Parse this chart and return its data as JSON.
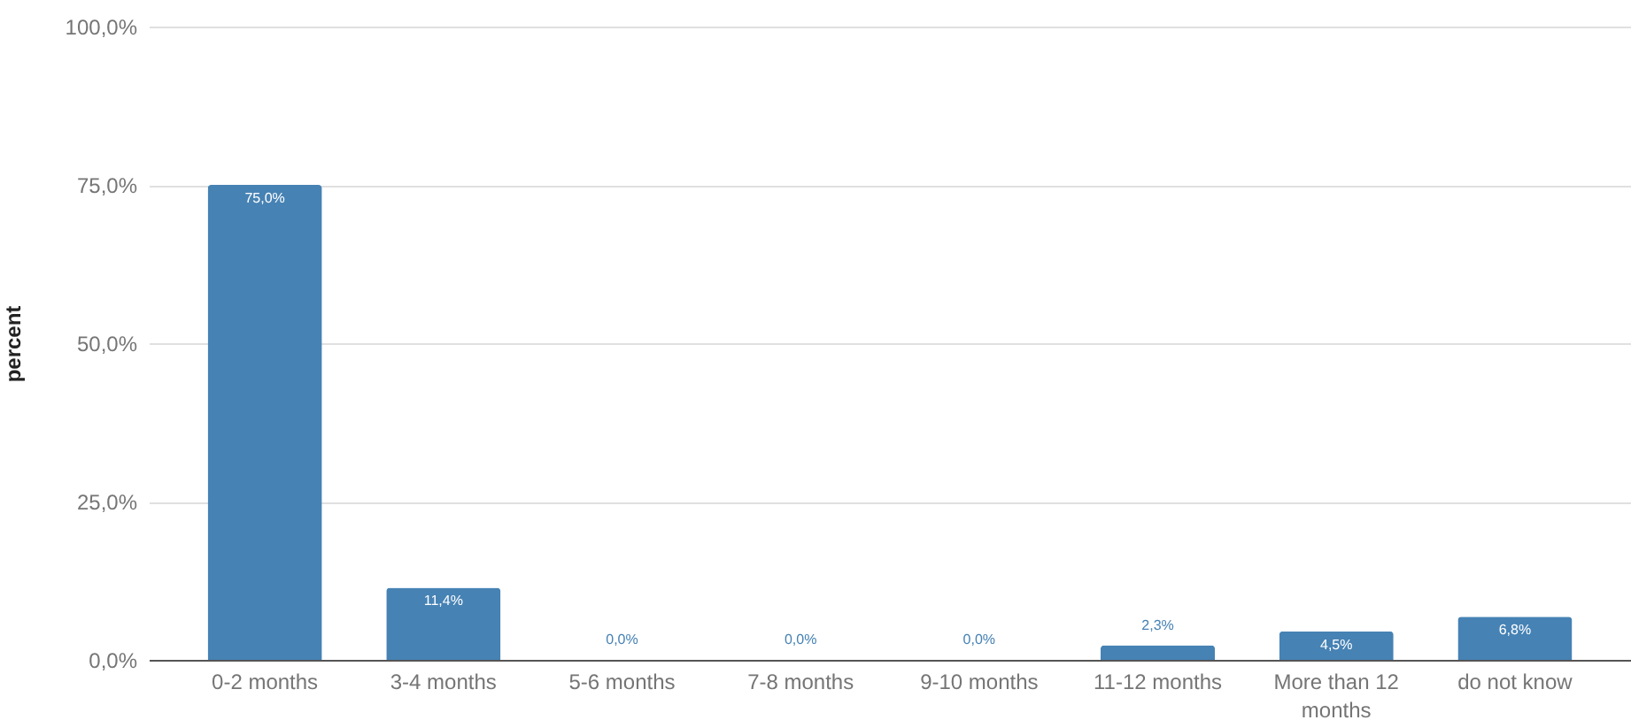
{
  "chart_data": {
    "type": "bar",
    "ylabel": "percent",
    "categories": [
      "0-2 months",
      "3-4 months",
      "5-6 months",
      "7-8 months",
      "9-10 months",
      "11-12 months",
      "More than 12 months",
      "do not know"
    ],
    "values": [
      75.0,
      11.4,
      0.0,
      0.0,
      0.0,
      2.3,
      4.5,
      6.8
    ],
    "value_labels": [
      "75,0%",
      "11,4%",
      "0,0%",
      "0,0%",
      "0,0%",
      "2,3%",
      "4,5%",
      "6,8%"
    ],
    "color": "#4682b4",
    "ylim": [
      0,
      100
    ],
    "yticks": [
      {
        "value": 0,
        "label": "0,0%"
      },
      {
        "value": 25,
        "label": "25,0%"
      },
      {
        "value": 50,
        "label": "50,0%"
      },
      {
        "value": 75,
        "label": "75,0%"
      },
      {
        "value": 100,
        "label": "100,0%"
      }
    ],
    "grid": "y"
  }
}
